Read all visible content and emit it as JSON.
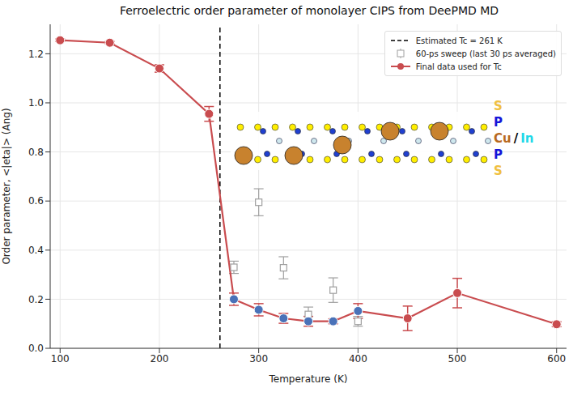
{
  "chart_data": {
    "type": "line",
    "title": "Ferroelectric order parameter of monolayer CIPS from DeePMD MD",
    "x_label": "Temperature (K)",
    "y_label": "Order parameter, <|eta|> (Ang)",
    "xlim": [
      90,
      610
    ],
    "xticks": [
      100,
      200,
      300,
      400,
      500,
      600
    ],
    "ylim": [
      0,
      1.32
    ],
    "yticks": [
      {
        "value": 0,
        "label": "0.0"
      },
      {
        "value": 0.2,
        "label": "0.2"
      },
      {
        "value": 0.4,
        "label": "0.4"
      },
      {
        "value": 0.6,
        "label": "0.6"
      },
      {
        "value": 0.8,
        "label": "0.8"
      },
      {
        "value": 1.0,
        "label": "1.0"
      },
      {
        "value": 1.2,
        "label": "1.2"
      }
    ],
    "grid": true,
    "legend": "upper right",
    "reference_lines": [
      {
        "x": 261,
        "name": "Estimated Tc = 261 K",
        "color": "#000000",
        "line_style": "dashed"
      }
    ],
    "series": [
      {
        "name": "60-ps sweep (last 30 ps averaged)",
        "type": "scatter",
        "marker": "square",
        "color": "#a0a0a0",
        "x": [
          275,
          300,
          325,
          350,
          375,
          400
        ],
        "values": [
          0.33,
          0.595,
          0.328,
          0.138,
          0.237,
          0.11
        ],
        "errors": [
          0.025,
          0.055,
          0.045,
          0.03,
          0.05,
          0.02
        ]
      },
      {
        "name": "Final data used for Tc",
        "type": "line",
        "marker": "circle",
        "color": "#c94c4f",
        "x": [
          100,
          150,
          200,
          250,
          275,
          300,
          325,
          350,
          375,
          400,
          450,
          500,
          600
        ],
        "values": [
          1.255,
          1.245,
          1.14,
          0.955,
          0.2,
          0.157,
          0.122,
          0.11,
          0.11,
          0.152,
          0.122,
          0.225,
          0.098
        ],
        "errors": [
          0.005,
          0.005,
          0.015,
          0.03,
          0.025,
          0.025,
          0.02,
          0.02,
          0.01,
          0.03,
          0.05,
          0.06,
          0.01
        ],
        "colors": [
          "#c94c4f",
          "#c94c4f",
          "#c94c4f",
          "#c94c4f",
          "#4a72b8",
          "#4a72b8",
          "#4a72b8",
          "#4a72b8",
          "#4a72b8",
          "#4a72b8",
          "#c94c4f",
          "#c94c4f",
          "#c94c4f"
        ]
      }
    ],
    "inset_labels": [
      [
        {
          "text": "S",
          "color": "#f0c040"
        }
      ],
      [
        {
          "text": "P",
          "color": "#1515d8"
        }
      ],
      [
        {
          "text": "Cu",
          "color": "#b8691e"
        },
        {
          "text": "/",
          "color": "#000000"
        },
        {
          "text": "In",
          "color": "#20d8e8"
        }
      ],
      [
        {
          "text": "P",
          "color": "#1515d8"
        }
      ],
      [
        {
          "text": "S",
          "color": "#f0c040"
        }
      ]
    ]
  }
}
